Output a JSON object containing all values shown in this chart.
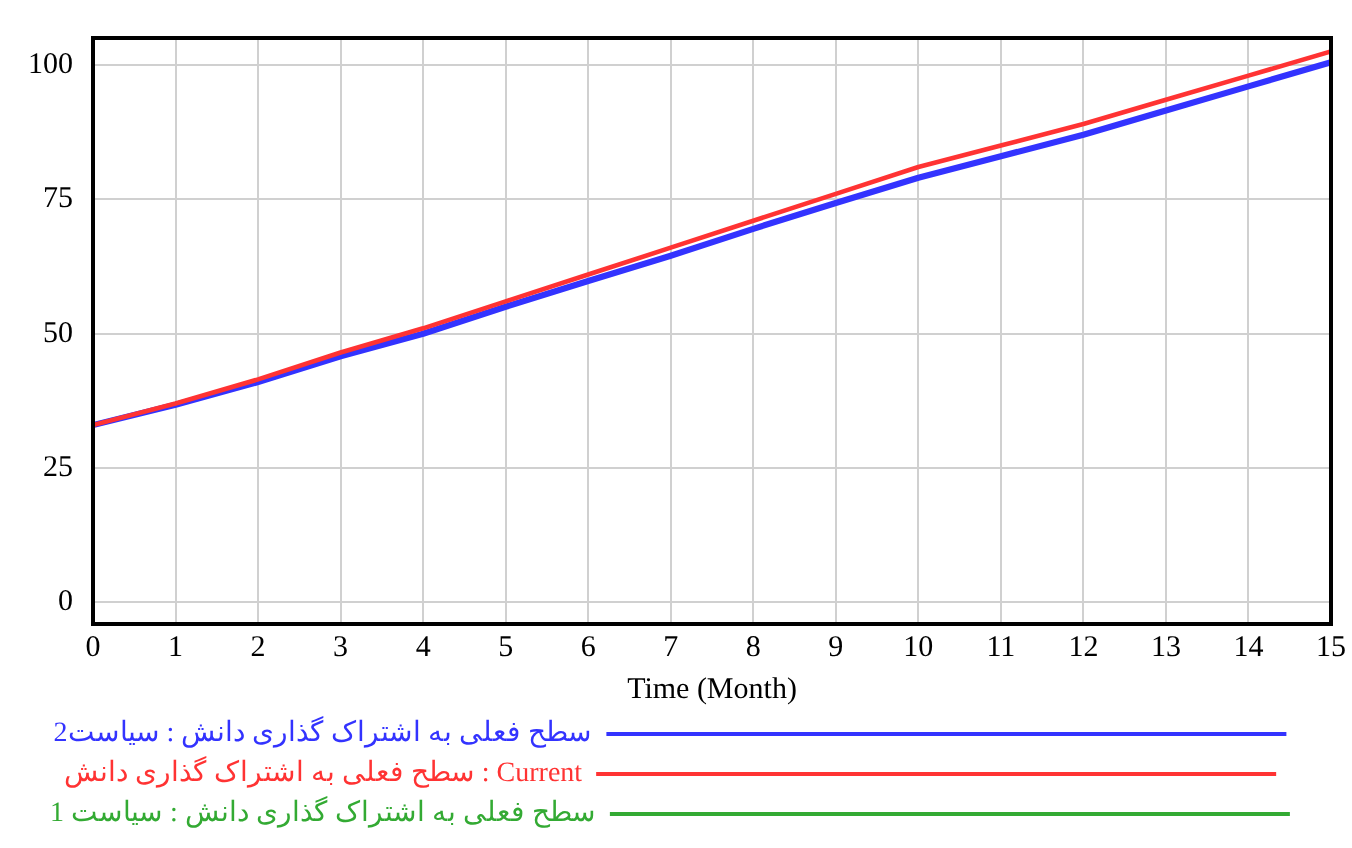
{
  "chart_data": {
    "type": "line",
    "xlabel": "Time (Month)",
    "x": [
      0,
      1,
      2,
      3,
      4,
      5,
      6,
      7,
      8,
      9,
      10,
      11,
      12,
      13,
      14,
      15
    ],
    "xlim": [
      0,
      15
    ],
    "xticks": [
      0,
      1,
      2,
      3,
      4,
      5,
      6,
      7,
      8,
      9,
      10,
      11,
      12,
      13,
      14,
      15
    ],
    "ylim": [
      -4,
      105
    ],
    "yticks": [
      0,
      25,
      50,
      75,
      100
    ],
    "grid": true,
    "legend": "bottom",
    "marker": "none",
    "line_style": "solid",
    "series": [
      {
        "name": "سطح فعلی به اشتراک گذاری دانش : سیاست2",
        "color": "#3333ff",
        "values": [
          33,
          36.8,
          41,
          45.8,
          50,
          55,
          59.8,
          64.5,
          69.5,
          74.3,
          79,
          83,
          87,
          91.5,
          96,
          100.5
        ]
      },
      {
        "name": "سطح فعلی به اشتراک گذاری دانش : Current",
        "color": "#ff3333",
        "values": [
          33,
          37,
          41.5,
          46.5,
          51,
          56,
          61,
          66,
          71,
          76,
          81,
          85,
          89,
          93.5,
          98,
          102.5
        ]
      },
      {
        "name": "سطح فعلی به اشتراک گذاری دانش : سیاست 1",
        "color": "#33aa33",
        "values": [
          null,
          null,
          null,
          null,
          null,
          null,
          null,
          null,
          null,
          null,
          null,
          null,
          null,
          null,
          null,
          null
        ]
      }
    ]
  }
}
